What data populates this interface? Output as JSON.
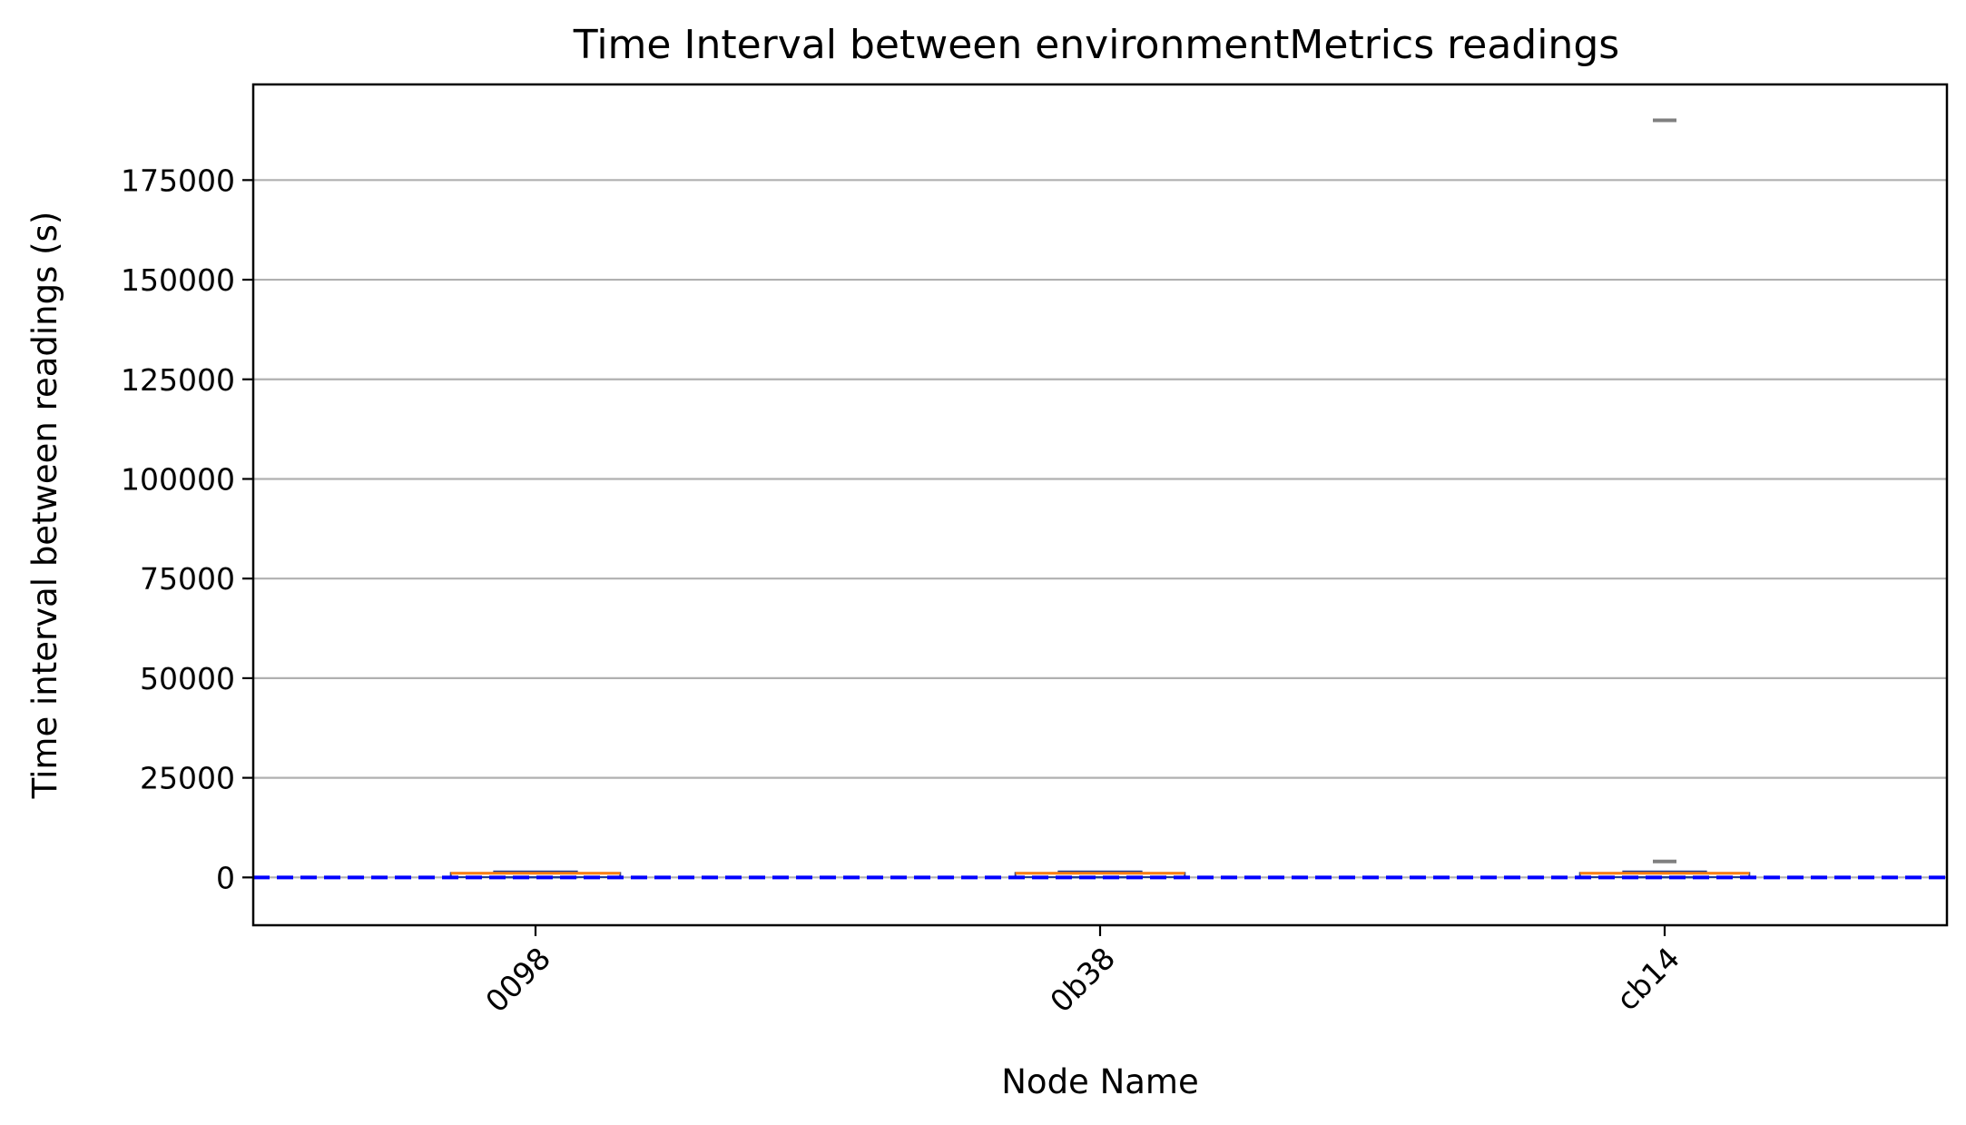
{
  "chart_data": {
    "type": "box",
    "title": "Time Interval between environmentMetrics readings",
    "xlabel": "Node Name",
    "ylabel": "Time interval between readings (s)",
    "categories": [
      "0098",
      "0b38",
      "cb14"
    ],
    "ylim": [
      -12000,
      199000
    ],
    "yticks": [
      0,
      25000,
      50000,
      75000,
      100000,
      125000,
      150000,
      175000
    ],
    "grid": "y",
    "xtick_rotation": 45,
    "boxes": [
      {
        "category": "0098",
        "q1": 300,
        "median": 600,
        "q3": 900,
        "whisker_low": 0,
        "whisker_high": 1500,
        "outliers": []
      },
      {
        "category": "0b38",
        "q1": 300,
        "median": 600,
        "q3": 900,
        "whisker_low": 0,
        "whisker_high": 1500,
        "outliers": []
      },
      {
        "category": "cb14",
        "q1": 300,
        "median": 600,
        "q3": 900,
        "whisker_low": 0,
        "whisker_high": 1500,
        "outliers": [
          4000,
          190000
        ]
      }
    ],
    "reference_line": {
      "y": 0,
      "style": "dashed",
      "color": "#0000ff"
    },
    "colors": {
      "box": "#1f3a93",
      "median": "#ff7f0e",
      "outlier": "#808080",
      "grid": "#b0b0b0"
    }
  }
}
